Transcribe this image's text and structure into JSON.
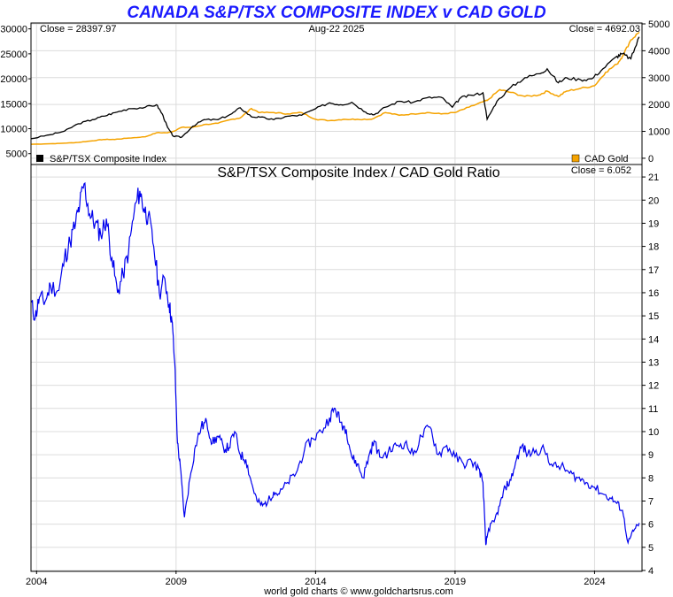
{
  "title": "CANADA S&P/TSX COMPOSITE INDEX v CAD GOLD",
  "footer": "world gold charts © www.goldchartsrus.com",
  "colors": {
    "title": "#1a1aff",
    "tsx": "#000000",
    "gold": "#f5a300",
    "ratio": "#0000ee",
    "grid": "#dcdcdc"
  },
  "chart_data": [
    {
      "type": "line",
      "date_label": "Aug-22  2025",
      "x_ticks": [
        "2004",
        "2009",
        "2014",
        "2019",
        "2024"
      ],
      "x_range": [
        2003.8,
        2025.7
      ],
      "left_axis": {
        "ticks": [
          30000,
          25000,
          20000,
          15000,
          10000,
          5000
        ],
        "range": [
          3000,
          31000
        ]
      },
      "right_axis": {
        "ticks": [
          5000,
          4000,
          3000,
          2000,
          1000,
          0
        ],
        "range": [
          -200,
          5000
        ]
      },
      "legend": "bottom",
      "series": [
        {
          "name": "S&P/TSX Composite Index",
          "axis": "left",
          "close_label": "Close = 28397.97",
          "x": [
            2003.8,
            2004.5,
            2005.0,
            2005.5,
            2006.0,
            2006.4,
            2006.8,
            2007.3,
            2007.9,
            2008.3,
            2008.5,
            2008.7,
            2008.9,
            2009.2,
            2009.6,
            2010.0,
            2010.5,
            2011.0,
            2011.3,
            2011.7,
            2012.0,
            2012.5,
            2013.0,
            2013.5,
            2014.0,
            2014.5,
            2014.9,
            2015.3,
            2015.8,
            2016.1,
            2016.5,
            2017.0,
            2017.5,
            2018.0,
            2018.5,
            2018.9,
            2019.2,
            2019.6,
            2020.0,
            2020.15,
            2020.5,
            2021.0,
            2021.5,
            2022.0,
            2022.3,
            2022.7,
            2023.0,
            2023.5,
            2023.9,
            2024.3,
            2024.8,
            2025.0,
            2025.3,
            2025.6
          ],
          "y": [
            8000,
            8800,
            9500,
            11000,
            11800,
            12500,
            13200,
            14000,
            14300,
            14800,
            13000,
            10200,
            8500,
            8300,
            10500,
            11800,
            11800,
            13000,
            14200,
            12400,
            12300,
            11800,
            12500,
            12700,
            14000,
            15200,
            14800,
            15300,
            13300,
            12800,
            14300,
            15500,
            15300,
            16200,
            16300,
            14300,
            16200,
            16700,
            17200,
            11900,
            15500,
            18300,
            20200,
            21000,
            22000,
            19200,
            20200,
            19800,
            20000,
            22000,
            24500,
            25000,
            24000,
            28398
          ]
        },
        {
          "name": "CAD Gold",
          "axis": "right",
          "close_label": "Close = 4692.03",
          "x": [
            2003.8,
            2004.5,
            2005.0,
            2005.5,
            2006.0,
            2006.4,
            2006.8,
            2007.3,
            2007.9,
            2008.3,
            2008.7,
            2008.9,
            2009.2,
            2009.6,
            2010.0,
            2010.5,
            2011.0,
            2011.3,
            2011.7,
            2012.0,
            2012.5,
            2013.0,
            2013.5,
            2014.0,
            2014.5,
            2015.0,
            2015.5,
            2016.0,
            2016.5,
            2017.0,
            2017.5,
            2018.0,
            2018.5,
            2019.0,
            2019.5,
            2020.0,
            2020.15,
            2020.6,
            2021.0,
            2021.5,
            2022.0,
            2022.3,
            2022.7,
            2023.0,
            2023.5,
            2024.0,
            2024.4,
            2024.8,
            2025.0,
            2025.3,
            2025.6
          ],
          "y": [
            520,
            540,
            560,
            590,
            650,
            700,
            700,
            750,
            800,
            950,
            950,
            1000,
            1150,
            1150,
            1250,
            1300,
            1450,
            1500,
            1850,
            1700,
            1700,
            1650,
            1700,
            1450,
            1400,
            1450,
            1450,
            1450,
            1700,
            1600,
            1650,
            1700,
            1650,
            1700,
            1900,
            2100,
            2150,
            2550,
            2450,
            2300,
            2350,
            2500,
            2300,
            2500,
            2600,
            2700,
            3200,
            3500,
            3800,
            4400,
            4692
          ]
        }
      ]
    },
    {
      "type": "line",
      "title": "S&P/TSX Composite Index  /  CAD Gold Ratio",
      "close_label": "Close = 6.052",
      "x_range": [
        2003.8,
        2025.7
      ],
      "y_range": [
        4,
        21.5
      ],
      "y_ticks": [
        21,
        20,
        19,
        18,
        17,
        16,
        15,
        14,
        13,
        12,
        11,
        10,
        9,
        8,
        7,
        6,
        5,
        4
      ],
      "x": [
        2003.8,
        2003.95,
        2004.1,
        2004.3,
        2004.5,
        2004.8,
        2005.0,
        2005.2,
        2005.4,
        2005.55,
        2005.7,
        2005.9,
        2006.1,
        2006.3,
        2006.5,
        2006.7,
        2006.9,
        2007.1,
        2007.3,
        2007.5,
        2007.7,
        2007.85,
        2008.0,
        2008.2,
        2008.4,
        2008.6,
        2008.75,
        2008.85,
        2008.95,
        2009.05,
        2009.15,
        2009.3,
        2009.5,
        2009.7,
        2009.9,
        2010.1,
        2010.3,
        2010.5,
        2010.7,
        2010.9,
        2011.1,
        2011.3,
        2011.5,
        2011.7,
        2011.9,
        2012.1,
        2012.3,
        2012.5,
        2012.7,
        2013.0,
        2013.3,
        2013.6,
        2013.9,
        2014.2,
        2014.5,
        2014.7,
        2014.9,
        2015.1,
        2015.3,
        2015.5,
        2015.7,
        2015.9,
        2016.1,
        2016.3,
        2016.6,
        2016.9,
        2017.2,
        2017.5,
        2017.8,
        2018.1,
        2018.4,
        2018.7,
        2019.0,
        2019.3,
        2019.6,
        2019.85,
        2020.0,
        2020.1,
        2020.2,
        2020.4,
        2020.6,
        2020.8,
        2021.0,
        2021.2,
        2021.4,
        2021.6,
        2021.9,
        2022.2,
        2022.5,
        2022.8,
        2023.1,
        2023.4,
        2023.7,
        2024.0,
        2024.3,
        2024.6,
        2024.8,
        2025.0,
        2025.2,
        2025.4,
        2025.6
      ],
      "y": [
        15.6,
        14.9,
        15.8,
        15.6,
        16.3,
        16.1,
        17.5,
        18.2,
        19.0,
        19.8,
        20.7,
        19.4,
        19.0,
        18.5,
        19.2,
        17.5,
        16.0,
        16.8,
        17.8,
        19.5,
        20.4,
        19.6,
        19.3,
        18.0,
        16.0,
        16.6,
        15.5,
        14.8,
        13.0,
        9.5,
        8.5,
        6.3,
        8.0,
        9.4,
        10.2,
        10.4,
        9.5,
        9.8,
        9.3,
        9.3,
        10.0,
        9.0,
        8.8,
        7.8,
        7.0,
        6.8,
        7.0,
        7.4,
        7.3,
        7.8,
        8.2,
        9.2,
        9.7,
        10.0,
        10.6,
        11.0,
        10.4,
        10.1,
        8.9,
        8.6,
        8.0,
        8.9,
        9.6,
        8.9,
        9.1,
        9.4,
        9.5,
        9.0,
        9.8,
        10.2,
        9.0,
        9.4,
        8.9,
        8.6,
        8.7,
        8.4,
        7.8,
        5.1,
        5.8,
        6.1,
        6.8,
        7.6,
        7.9,
        8.8,
        9.4,
        9.0,
        9.2,
        9.2,
        8.5,
        8.5,
        8.2,
        8.0,
        7.8,
        7.6,
        7.3,
        7.1,
        6.9,
        6.6,
        5.2,
        5.7,
        6.052
      ]
    }
  ]
}
